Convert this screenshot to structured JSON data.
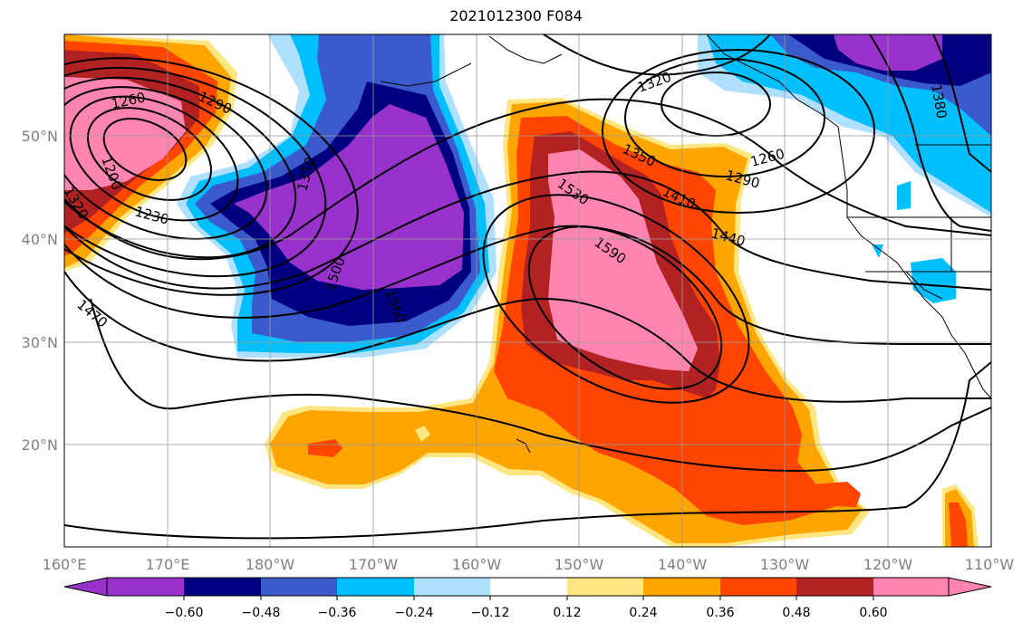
{
  "title": "2021012300 F084",
  "map": {
    "lon_labels": [
      "160°E",
      "170°E",
      "180°W",
      "170°W",
      "160°W",
      "150°W",
      "140°W",
      "130°W",
      "120°W",
      "110°W"
    ],
    "lat_labels": [
      "50°N",
      "40°N",
      "30°N",
      "20°N"
    ],
    "contour_labels": [
      "1260",
      "1290",
      "1200",
      "1320",
      "1230",
      "1350",
      "1470",
      "1500",
      "1560",
      "1530",
      "1590",
      "1410",
      "1440",
      "1380",
      "1320",
      "1350",
      "1290",
      "1260",
      "1380"
    ],
    "colorbar": {
      "ticks": [
        "−0.60",
        "−0.48",
        "−0.36",
        "−0.24",
        "−0.12",
        "0.12",
        "0.24",
        "0.36",
        "0.48",
        "0.60"
      ],
      "colors": [
        "#9932cc",
        "#000080",
        "#3b5bcc",
        "#00bfff",
        "#b0e0ff",
        "#ffffff",
        "#ffe680",
        "#ffa500",
        "#ff4500",
        "#b22222",
        "#ff85b0"
      ]
    },
    "colors": {
      "purple": "#9932cc",
      "navy": "#000080",
      "blue": "#3b5bcc",
      "cyan": "#00bfff",
      "lightblue": "#b0e0ff",
      "yellow": "#ffe680",
      "orange": "#ffa500",
      "redorange": "#ff4500",
      "darkred": "#b22222",
      "pink": "#ff85b0"
    }
  }
}
